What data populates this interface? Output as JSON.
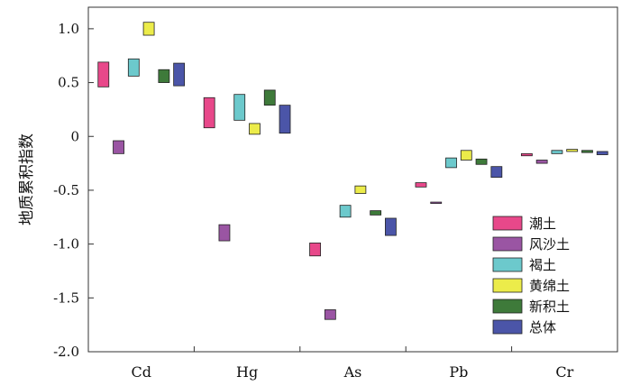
{
  "chart_data": {
    "type": "floating-bar",
    "ylabel": "地质累积指数",
    "xlabel": "",
    "ylim": [
      -2.0,
      1.2
    ],
    "yticks": [
      "1.0",
      "0.5",
      "0",
      "-0.5",
      "-1.0",
      "-1.5",
      "-2.0"
    ],
    "ytick_values": [
      1.0,
      0.5,
      0,
      -0.5,
      -1.0,
      -1.5,
      -2.0
    ],
    "grid": false,
    "legend_position": "bottom-right",
    "categories": [
      "Cd",
      "Hg",
      "As",
      "Pb",
      "Cr"
    ],
    "series": [
      {
        "name": "潮土",
        "color": "#e8488a",
        "ranges": [
          [
            0.46,
            0.69
          ],
          [
            0.08,
            0.36
          ],
          [
            -1.11,
            -0.99
          ],
          [
            -0.47,
            -0.43
          ],
          [
            -0.18,
            -0.16
          ]
        ]
      },
      {
        "name": "风沙土",
        "color": "#9a55a3",
        "ranges": [
          [
            -0.16,
            -0.04
          ],
          [
            -0.97,
            -0.82
          ],
          [
            -1.7,
            -1.61
          ],
          [
            -0.62,
            -0.61
          ],
          [
            -0.25,
            -0.22
          ]
        ]
      },
      {
        "name": "褐土",
        "color": "#6cc9cc",
        "ranges": [
          [
            0.56,
            0.72
          ],
          [
            0.15,
            0.39
          ],
          [
            -0.75,
            -0.64
          ],
          [
            -0.29,
            -0.2
          ],
          [
            -0.16,
            -0.13
          ]
        ]
      },
      {
        "name": "黄绵土",
        "color": "#ecec4a",
        "ranges": [
          [
            0.94,
            1.06
          ],
          [
            0.02,
            0.12
          ],
          [
            -0.53,
            -0.46
          ],
          [
            -0.22,
            -0.13
          ],
          [
            -0.14,
            -0.12
          ]
        ]
      },
      {
        "name": "新积土",
        "color": "#3e7a3a",
        "ranges": [
          [
            0.5,
            0.62
          ],
          [
            0.29,
            0.43
          ],
          [
            -0.73,
            -0.69
          ],
          [
            -0.26,
            -0.21
          ],
          [
            -0.15,
            -0.13
          ]
        ]
      },
      {
        "name": "总体",
        "color": "#4b55a8",
        "ranges": [
          [
            0.47,
            0.68
          ],
          [
            0.03,
            0.29
          ],
          [
            -0.92,
            -0.76
          ],
          [
            -0.38,
            -0.28
          ],
          [
            -0.17,
            -0.14
          ]
        ]
      }
    ]
  }
}
